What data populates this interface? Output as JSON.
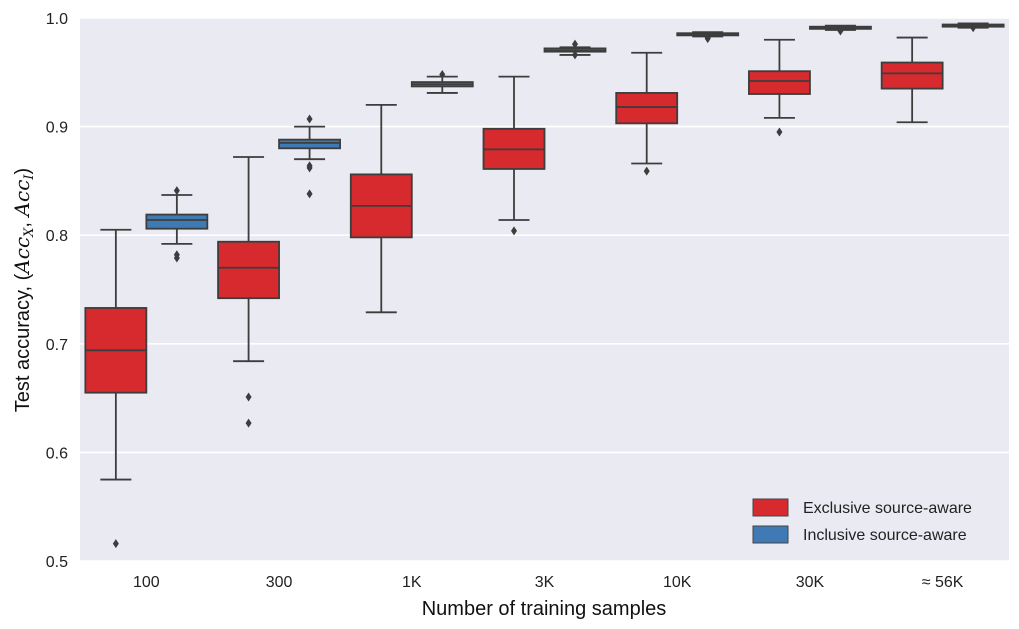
{
  "chart_data": {
    "type": "box",
    "xlabel": "Number of training samples",
    "ylabel_prefix": "Test accuracy, (",
    "ylabel_acc": "Acc",
    "ylabel_sub_x": "X",
    "ylabel_sub_i": "I",
    "ylabel_sep": ", ",
    "ylabel_suffix": ")",
    "ylim": [
      0.5,
      1.0
    ],
    "yticks": [
      "0.5",
      "0.6",
      "0.7",
      "0.8",
      "0.9",
      "1.0"
    ],
    "grid": true,
    "background_color": "#eaeaf2",
    "legend_position": "lower-right",
    "categories": [
      "100",
      "300",
      "1K",
      "3K",
      "10K",
      "30K",
      "≈ 56K"
    ],
    "series": [
      {
        "name": "Exclusive source-aware",
        "color": "#d62a2e",
        "boxes": [
          {
            "whislo": 0.575,
            "q1": 0.655,
            "med": 0.694,
            "q3": 0.733,
            "whishi": 0.805,
            "fliers": [
              0.516
            ]
          },
          {
            "whislo": 0.684,
            "q1": 0.742,
            "med": 0.77,
            "q3": 0.794,
            "whishi": 0.872,
            "fliers": [
              0.651,
              0.627
            ]
          },
          {
            "whislo": 0.729,
            "q1": 0.798,
            "med": 0.827,
            "q3": 0.856,
            "whishi": 0.92,
            "fliers": []
          },
          {
            "whislo": 0.814,
            "q1": 0.861,
            "med": 0.879,
            "q3": 0.898,
            "whishi": 0.946,
            "fliers": [
              0.804
            ]
          },
          {
            "whislo": 0.866,
            "q1": 0.903,
            "med": 0.918,
            "q3": 0.931,
            "whishi": 0.968,
            "fliers": [
              0.859
            ]
          },
          {
            "whislo": 0.908,
            "q1": 0.93,
            "med": 0.942,
            "q3": 0.951,
            "whishi": 0.98,
            "fliers": [
              0.895
            ]
          },
          {
            "whislo": 0.904,
            "q1": 0.935,
            "med": 0.949,
            "q3": 0.959,
            "whishi": 0.982,
            "fliers": []
          }
        ]
      },
      {
        "name": "Inclusive source-aware",
        "color": "#3f7ab5",
        "boxes": [
          {
            "whislo": 0.792,
            "q1": 0.806,
            "med": 0.814,
            "q3": 0.819,
            "whishi": 0.837,
            "fliers": [
              0.841,
              0.782,
              0.779
            ]
          },
          {
            "whislo": 0.87,
            "q1": 0.88,
            "med": 0.885,
            "q3": 0.888,
            "whishi": 0.9,
            "fliers": [
              0.907,
              0.864,
              0.862,
              0.838
            ]
          },
          {
            "whislo": 0.931,
            "q1": 0.937,
            "med": 0.939,
            "q3": 0.941,
            "whishi": 0.946,
            "fliers": [
              0.948
            ]
          },
          {
            "whislo": 0.966,
            "q1": 0.969,
            "med": 0.97,
            "q3": 0.972,
            "whishi": 0.973,
            "fliers": [
              0.976,
              0.966
            ]
          },
          {
            "whislo": 0.983,
            "q1": 0.984,
            "med": 0.985,
            "q3": 0.986,
            "whishi": 0.987,
            "fliers": [
              0.981,
              0.982
            ]
          },
          {
            "whislo": 0.989,
            "q1": 0.99,
            "med": 0.991,
            "q3": 0.992,
            "whishi": 0.993,
            "fliers": [
              0.988
            ]
          },
          {
            "whislo": 0.991,
            "q1": 0.992,
            "med": 0.993,
            "q3": 0.994,
            "whishi": 0.995,
            "fliers": [
              0.991
            ]
          }
        ]
      }
    ]
  }
}
